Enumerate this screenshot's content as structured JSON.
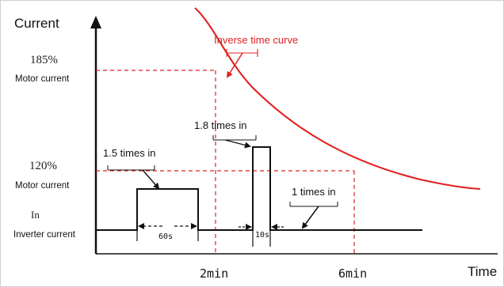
{
  "axes": {
    "y_title": "Current",
    "x_title": "Time"
  },
  "y_levels": [
    {
      "value": "185%",
      "sub": "Motor current"
    },
    {
      "value": "120%",
      "sub": "Motor current"
    },
    {
      "value": "In",
      "sub": "Inverter current"
    }
  ],
  "x_ticks": [
    "2min",
    "6min"
  ],
  "curve": {
    "label": "Inverse time curve",
    "color": "#e02020"
  },
  "annotations": {
    "pulse_1_5": "1.5 times in",
    "pulse_1_8": "1.8 times in",
    "steady_1": "1 times in",
    "duration_60": "60s",
    "duration_10": "10s"
  },
  "colors": {
    "line": "#111111",
    "guide": "#e02020"
  }
}
